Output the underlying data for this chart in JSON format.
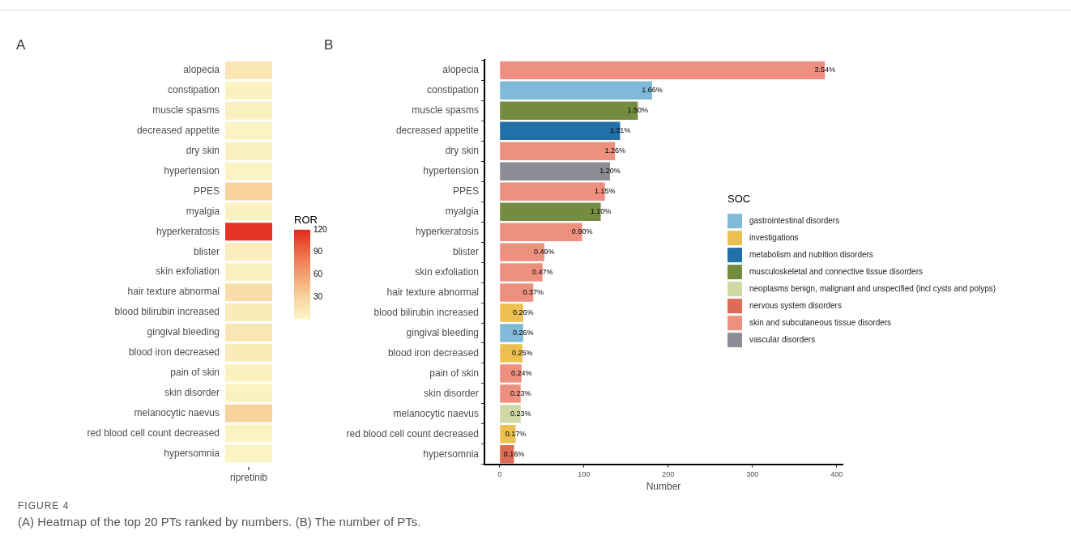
{
  "chart_data": [
    {
      "type": "heatmap",
      "title": "A",
      "categories": [
        "ripretinib"
      ],
      "y_categories": [
        "alopecia",
        "constipation",
        "muscle spasms",
        "decreased appetite",
        "dry skin",
        "hypertension",
        "PPES",
        "myalgia",
        "hyperkeratosis",
        "blister",
        "skin exfoliation",
        "hair texture abnormal",
        "blood bilirubin increased",
        "gingival bleeding",
        "blood iron decreased",
        "pain of skin",
        "skin disorder",
        "melanocytic naevus",
        "red blood cell count decreased",
        "hypersomnia"
      ],
      "cells": [
        [
          15
        ],
        [
          5
        ],
        [
          7
        ],
        [
          4
        ],
        [
          6
        ],
        [
          4
        ],
        [
          30
        ],
        [
          5
        ],
        [
          115
        ],
        [
          8
        ],
        [
          5
        ],
        [
          22
        ],
        [
          10
        ],
        [
          15
        ],
        [
          10
        ],
        [
          5
        ],
        [
          5
        ],
        [
          30
        ],
        [
          4
        ],
        [
          4
        ]
      ],
      "clabel": "ROR",
      "clim": [
        1,
        120
      ],
      "cticks": [
        30,
        60,
        90,
        120
      ]
    },
    {
      "type": "bar",
      "orientation": "horizontal",
      "title": "B",
      "xlabel": "Number",
      "legend_title": "SOC",
      "legend": "right",
      "grid": false,
      "categories": [
        "alopecia",
        "constipation",
        "muscle spasms",
        "decreased appetite",
        "dry skin",
        "hypertension",
        "PPES",
        "myalgia",
        "hyperkeratosis",
        "blister",
        "skin exfoliation",
        "hair texture abnormal",
        "blood bilirubin increased",
        "gingival bleeding",
        "blood iron decreased",
        "pain of skin",
        "skin disorder",
        "melanocytic naevus",
        "red blood cell count decreased",
        "hypersomnia"
      ],
      "xlim": [
        -18,
        407
      ],
      "xticks": [
        0,
        100,
        200,
        300,
        400
      ],
      "series": [
        {
          "name": "gastrointestinal disorders",
          "color": "#7fbad8",
          "values": [
            null,
            181,
            null,
            null,
            null,
            null,
            null,
            null,
            null,
            null,
            null,
            null,
            null,
            28,
            null,
            null,
            null,
            null,
            null,
            null
          ]
        },
        {
          "name": "investigations",
          "color": "#ebc050",
          "values": [
            null,
            null,
            null,
            null,
            null,
            null,
            null,
            null,
            null,
            null,
            null,
            null,
            28,
            null,
            27,
            null,
            null,
            null,
            19,
            null
          ]
        },
        {
          "name": "metabolism and nutrition disorders",
          "color": "#2270a8",
          "values": [
            null,
            null,
            null,
            143,
            null,
            null,
            null,
            null,
            null,
            null,
            null,
            null,
            null,
            null,
            null,
            null,
            null,
            null,
            null,
            null
          ]
        },
        {
          "name": "musculoskeletal and connective tissue disorders",
          "color": "#738c40",
          "values": [
            null,
            null,
            164,
            null,
            null,
            null,
            null,
            120,
            null,
            null,
            null,
            null,
            null,
            null,
            null,
            null,
            null,
            null,
            null,
            null
          ]
        },
        {
          "name": "neoplasms benign, malignant and unspecified (incl cysts and polyps)",
          "color": "#d0d9a3",
          "values": [
            null,
            null,
            null,
            null,
            null,
            null,
            null,
            null,
            null,
            null,
            null,
            null,
            null,
            null,
            null,
            null,
            null,
            25,
            null,
            null
          ]
        },
        {
          "name": "nervous system disorders",
          "color": "#de6b55",
          "values": [
            null,
            null,
            null,
            null,
            null,
            null,
            null,
            null,
            null,
            null,
            null,
            null,
            null,
            null,
            null,
            null,
            null,
            null,
            null,
            17
          ]
        },
        {
          "name": "skin and subcutaneous tissue disorders",
          "color": "#ee9080",
          "values": [
            386,
            null,
            null,
            null,
            137,
            null,
            125,
            null,
            98,
            53,
            51,
            40,
            null,
            null,
            null,
            26,
            25,
            null,
            null,
            null
          ]
        },
        {
          "name": "vascular disorders",
          "color": "#8c8c95",
          "values": [
            null,
            null,
            null,
            null,
            null,
            131,
            null,
            null,
            null,
            null,
            null,
            null,
            null,
            null,
            null,
            null,
            null,
            null,
            null,
            null
          ]
        }
      ],
      "annotations": [
        {
          "text": "3.54%",
          "x": 386,
          "y": "alopecia"
        },
        {
          "text": "1.66%",
          "x": 181,
          "y": "constipation"
        },
        {
          "text": "1.50%",
          "x": 164,
          "y": "muscle spasms"
        },
        {
          "text": "1.31%",
          "x": 143,
          "y": "decreased appetite"
        },
        {
          "text": "1.26%",
          "x": 137,
          "y": "dry skin"
        },
        {
          "text": "1.20%",
          "x": 131,
          "y": "hypertension"
        },
        {
          "text": "1.15%",
          "x": 125,
          "y": "PPES"
        },
        {
          "text": "1.10%",
          "x": 120,
          "y": "myalgia"
        },
        {
          "text": "0.90%",
          "x": 98,
          "y": "hyperkeratosis"
        },
        {
          "text": "0.49%",
          "x": 53,
          "y": "blister"
        },
        {
          "text": "0.47%",
          "x": 51,
          "y": "skin exfoliation"
        },
        {
          "text": "0.37%",
          "x": 40,
          "y": "hair texture abnormal"
        },
        {
          "text": "0.26%",
          "x": 28,
          "y": "blood bilirubin increased"
        },
        {
          "text": "0.26%",
          "x": 28,
          "y": "gingival bleeding"
        },
        {
          "text": "0.25%",
          "x": 27,
          "y": "blood iron decreased"
        },
        {
          "text": "0.24%",
          "x": 26,
          "y": "pain of skin"
        },
        {
          "text": "0.23%",
          "x": 25,
          "y": "skin disorder"
        },
        {
          "text": "0.23%",
          "x": 25,
          "y": "melanocytic naevus"
        },
        {
          "text": "0.17%",
          "x": 19,
          "y": "red blood cell count decreased"
        },
        {
          "text": "0.16%",
          "x": 17,
          "y": "hypersomnia"
        },
        "FIGURE 4",
        "(A) Heatmap of the top 20 PTs ranked by numbers. (B) The number of PTs."
      ]
    }
  ]
}
